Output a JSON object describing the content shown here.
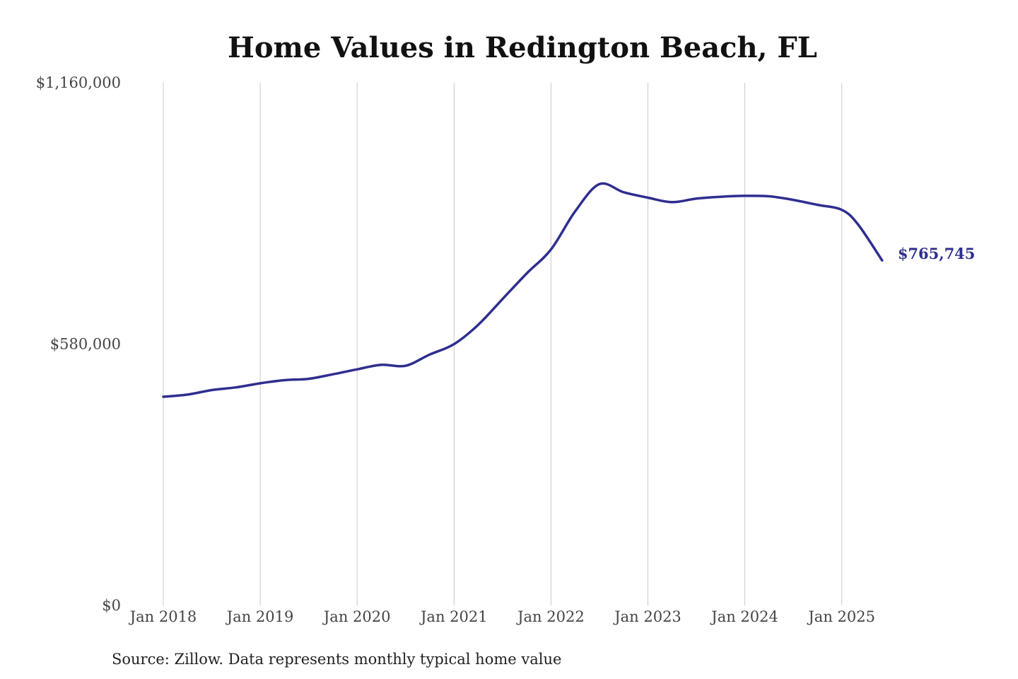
{
  "chart_data": {
    "type": "line",
    "title": "Home Values in Redington Beach, FL",
    "source": "Source: Zillow. Data represents monthly typical home value",
    "ylim": [
      0,
      1160000
    ],
    "xlim": [
      "2018-01",
      "2025-06"
    ],
    "y_ticks": [
      {
        "value": 0,
        "label": "$0"
      },
      {
        "value": 580000,
        "label": "$580,000"
      },
      {
        "value": 1160000,
        "label": "$1,160,000"
      }
    ],
    "x_ticks": [
      {
        "value": "2018-01",
        "label": "Jan 2018"
      },
      {
        "value": "2019-01",
        "label": "Jan 2019"
      },
      {
        "value": "2020-01",
        "label": "Jan 2020"
      },
      {
        "value": "2021-01",
        "label": "Jan 2021"
      },
      {
        "value": "2022-01",
        "label": "Jan 2022"
      },
      {
        "value": "2023-01",
        "label": "Jan 2023"
      },
      {
        "value": "2024-01",
        "label": "Jan 2024"
      },
      {
        "value": "2025-01",
        "label": "Jan 2025"
      }
    ],
    "grid": {
      "vertical": true,
      "horizontal": false
    },
    "line_color": "#2e2e8f",
    "end_label": "$765,745",
    "series": [
      {
        "points": [
          [
            "2018-01",
            463000
          ],
          [
            "2018-04",
            468000
          ],
          [
            "2018-07",
            478000
          ],
          [
            "2018-10",
            484000
          ],
          [
            "2019-01",
            493000
          ],
          [
            "2019-04",
            500000
          ],
          [
            "2019-07",
            503000
          ],
          [
            "2019-10",
            513000
          ],
          [
            "2020-01",
            524000
          ],
          [
            "2020-04",
            534000
          ],
          [
            "2020-07",
            532000
          ],
          [
            "2020-10",
            557000
          ],
          [
            "2021-01",
            580000
          ],
          [
            "2021-04",
            623000
          ],
          [
            "2021-07",
            680000
          ],
          [
            "2021-10",
            737000
          ],
          [
            "2022-01",
            790000
          ],
          [
            "2022-04",
            875000
          ],
          [
            "2022-07",
            935000
          ],
          [
            "2022-10",
            917000
          ],
          [
            "2023-01",
            905000
          ],
          [
            "2023-04",
            895000
          ],
          [
            "2023-07",
            903000
          ],
          [
            "2023-10",
            907000
          ],
          [
            "2024-01",
            909000
          ],
          [
            "2024-04",
            908000
          ],
          [
            "2024-07",
            900000
          ],
          [
            "2024-10",
            889000
          ],
          [
            "2025-01",
            878000
          ],
          [
            "2025-03",
            846000
          ],
          [
            "2025-06",
            765745
          ]
        ]
      }
    ]
  }
}
